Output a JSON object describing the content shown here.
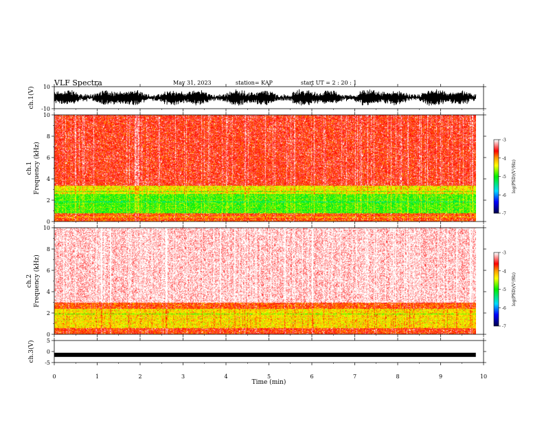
{
  "header": {
    "title": "VLF Spectra",
    "date": "May 31, 2023",
    "station": "station= KAP",
    "start": "start  UT =   2 : 20 : 1"
  },
  "chart_data": [
    {
      "type": "line",
      "name": "ch1-waveform",
      "ylabel": "ch.1(V)",
      "ylim": [
        -10,
        10
      ],
      "y_ticks": [
        "10",
        "-10"
      ],
      "xlim": [
        0,
        10
      ],
      "x_end_min": 9.82,
      "amplitude_range_v": [
        -8,
        8
      ]
    },
    {
      "type": "heatmap",
      "name": "ch1-spectrogram",
      "ylabel": "ch.1\nFrequency (kHz)",
      "ylim": [
        0,
        10
      ],
      "y_ticks": [
        "0",
        "2",
        "4",
        "6",
        "8",
        "10"
      ],
      "xlim": [
        0,
        10
      ],
      "x_end_min": 9.82,
      "bands": [
        {
          "from_khz": 0,
          "to_khz": 0.8,
          "level": -3.8,
          "label": "red/orange with lines"
        },
        {
          "from_khz": 0.8,
          "to_khz": 2.6,
          "level": -4.9,
          "label": "green"
        },
        {
          "from_khz": 2.6,
          "to_khz": 3.4,
          "level": -4.4,
          "label": "yellow/green"
        },
        {
          "from_khz": 3.4,
          "to_khz": 10,
          "level": -3.6,
          "label": "red"
        }
      ],
      "colorbar": {
        "label": "log(PSD)(V²/Hz)",
        "ticks": [
          "-3",
          "-4",
          "-5",
          "-6",
          "-7"
        ],
        "range": [
          -7,
          -3
        ]
      }
    },
    {
      "type": "heatmap",
      "name": "ch2-spectrogram",
      "ylabel": "ch.2\nFrequency (kHz)",
      "ylim": [
        0,
        10
      ],
      "y_ticks": [
        "0",
        "2",
        "4",
        "6",
        "8",
        "10"
      ],
      "xlim": [
        0,
        10
      ],
      "x_end_min": 9.82,
      "bands": [
        {
          "from_khz": 0,
          "to_khz": 0.6,
          "level": -3.7,
          "label": "red/orange"
        },
        {
          "from_khz": 0.6,
          "to_khz": 2.4,
          "level": -4.3,
          "label": "yellow"
        },
        {
          "from_khz": 2.4,
          "to_khz": 3.0,
          "level": -3.8,
          "label": "red"
        },
        {
          "from_khz": 3.0,
          "to_khz": 10,
          "level": -3.1,
          "label": "pink/white"
        }
      ],
      "colorbar": {
        "label": "log(PSD)(V²/Hz)",
        "ticks": [
          "-3",
          "-4",
          "-5",
          "-6",
          "-7"
        ],
        "range": [
          -7,
          -3
        ]
      }
    },
    {
      "type": "line",
      "name": "ch3-waveform",
      "ylabel": "ch.3(V)",
      "ylim": [
        -5,
        5
      ],
      "y_ticks": [
        "5",
        "0",
        "-5"
      ],
      "xlim": [
        0,
        10
      ],
      "x_end_min": 9.82,
      "level_v": -1.5
    }
  ],
  "x_axis": {
    "label": "Time (min)",
    "ticks": [
      "0",
      "1",
      "2",
      "3",
      "4",
      "5",
      "6",
      "7",
      "8",
      "9",
      "10"
    ]
  },
  "colors": {
    "trace": "#000000",
    "colormap": [
      "#000066",
      "#0000ff",
      "#00ffff",
      "#00ff00",
      "#ffff00",
      "#ff0000",
      "#ffffff"
    ]
  }
}
